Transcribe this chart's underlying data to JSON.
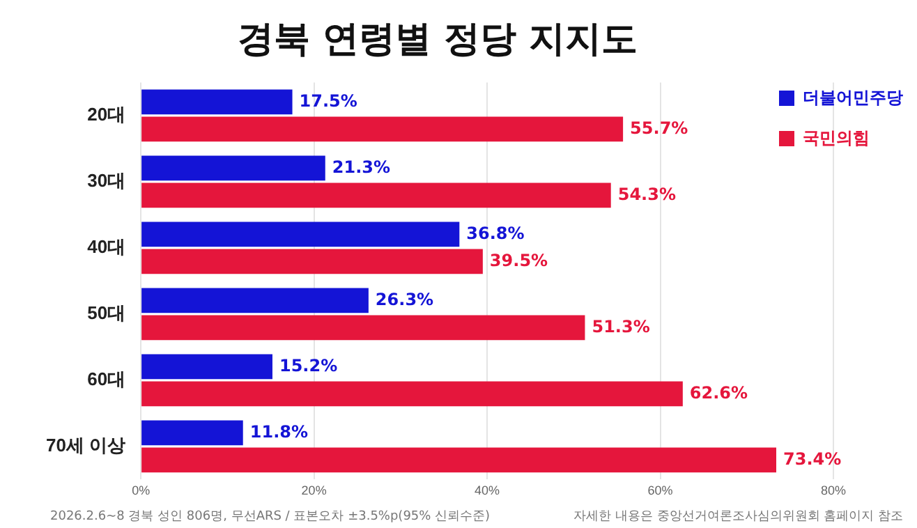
{
  "chart_data": {
    "type": "bar",
    "orientation": "horizontal",
    "title": "경북 연령별 정당 지지도",
    "categories": [
      "20대",
      "30대",
      "40대",
      "50대",
      "60대",
      "70세 이상"
    ],
    "series": [
      {
        "name": "더불어민주당",
        "color": "#1414d6",
        "values": [
          17.5,
          21.3,
          36.8,
          26.3,
          15.2,
          11.8
        ],
        "value_labels": [
          "17.5%",
          "21.3%",
          "36.8%",
          "26.3%",
          "15.2%",
          "11.8%"
        ]
      },
      {
        "name": "국민의힘",
        "color": "#e5163c",
        "values": [
          55.7,
          54.3,
          39.5,
          51.3,
          62.6,
          73.4
        ],
        "value_labels": [
          "55.7%",
          "54.3%",
          "39.5%",
          "51.3%",
          "62.6%",
          "73.4%"
        ]
      }
    ],
    "xlim": [
      0,
      80
    ],
    "xticks": [
      {
        "value": 0,
        "label": "0%"
      },
      {
        "value": 20,
        "label": "20%"
      },
      {
        "value": 40,
        "label": "40%"
      },
      {
        "value": 60,
        "label": "60%"
      },
      {
        "value": 80,
        "label": "80%"
      }
    ],
    "grid": "x",
    "legend": "top right",
    "annotations": [
      "2026.2.6~8 경북 성인 806명, 무선ARS / 표본오차 ±3.5%p(95% 신뢰수준)",
      "자세한 내용은 중앙선거여론조사심의위원회 홈페이지 참조"
    ]
  }
}
